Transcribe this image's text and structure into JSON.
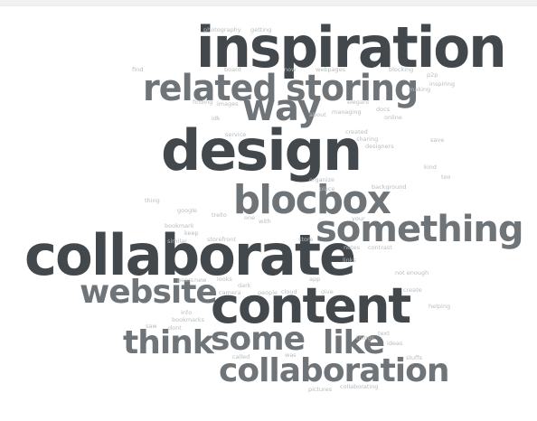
{
  "cloud": {
    "large": {
      "inspiration": "inspiration",
      "related": "related",
      "storing": "storing",
      "way": "way",
      "design": "design",
      "blocbox": "blocbox",
      "something": "something",
      "collaborate": "collaborate",
      "website": "website",
      "content": "content",
      "think": "think",
      "some": "some",
      "like": "like",
      "collaboration": "collaboration"
    },
    "small": {
      "photography": "photography",
      "getting": "getting",
      "find": "find",
      "board": "board",
      "now": "now",
      "webpages": "webpages",
      "blocking": "blocking",
      "p2p": "p2p",
      "making": "making",
      "inspiring": "inspiring",
      "finding": "finding",
      "images": "images",
      "elegant": "elegant",
      "docs": "docs",
      "about": "about",
      "managing": "managing",
      "online": "online",
      "idk": "idk",
      "created": "created",
      "service": "service",
      "sharing": "sharing",
      "save": "save",
      "designers": "designers",
      "kind": "kind",
      "too": "too",
      "organize": "organize",
      "place": "place",
      "background": "background",
      "thing": "thing",
      "google": "google",
      "trello": "trello",
      "one": "one",
      "with": "with",
      "your": "your",
      "bookmark": "bookmark",
      "keep": "keep",
      "storefront": "storefront",
      "store": "store",
      "notes": "notes",
      "contrast": "contrast",
      "similar": "similar",
      "links": "links",
      "peers": "peers",
      "new": "new",
      "looks": "looks",
      "app": "app",
      "not_enough": "not enough",
      "dark": "dark",
      "camera": "camera",
      "people": "people",
      "cloud": "cloud",
      "give": "give",
      "create": "create",
      "info": "info",
      "bookmarks": "bookmarks",
      "helping": "helping",
      "saw": "saw",
      "dont": "dont",
      "things": "things",
      "text": "text",
      "ideas": "ideas",
      "called": "called",
      "was": "was",
      "stuffs": "stuffs",
      "pictures": "pictures",
      "collaborating": "collaborating"
    }
  },
  "colors": {
    "dark": "#42484c",
    "mid": "#6f7478",
    "light": "#9ba0a3",
    "pale": "#b9bdbf",
    "background": "#ffffff"
  }
}
